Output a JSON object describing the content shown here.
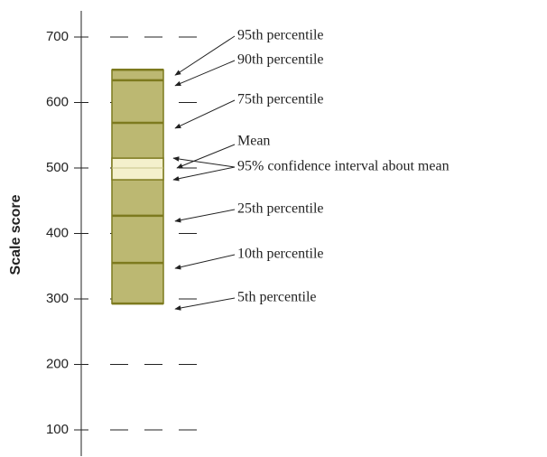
{
  "chart_data": {
    "type": "percentile-bar",
    "y_label": "Scale score",
    "ylim": [
      60,
      740
    ],
    "yticks": [
      100,
      200,
      300,
      400,
      500,
      600,
      700
    ],
    "grid": true,
    "color": "#bcb872",
    "line_color": "#7d7a1e",
    "ci_color": "#f4f0cc",
    "percentiles": [
      {
        "label": "95th percentile",
        "value": 650
      },
      {
        "label": "90th percentile",
        "value": 634
      },
      {
        "label": "75th percentile",
        "value": 569
      },
      {
        "label": "25th percentile",
        "value": 427
      },
      {
        "label": "10th percentile",
        "value": 355
      },
      {
        "label": "5th percentile",
        "value": 293
      }
    ],
    "mean": {
      "label": "Mean",
      "value": 500
    },
    "confidence_interval": {
      "label": "95% confidence interval about mean",
      "values": [
        482,
        515
      ]
    }
  }
}
